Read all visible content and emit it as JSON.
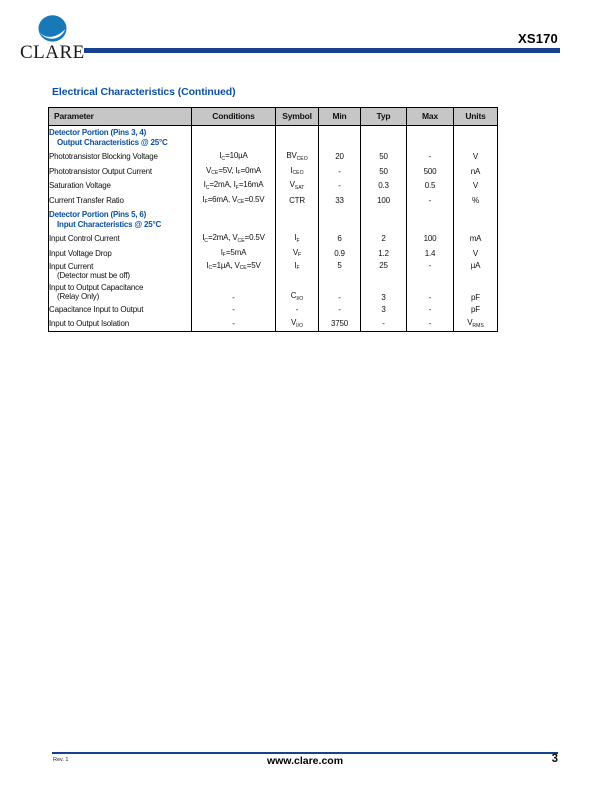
{
  "header": {
    "brand": "CLARE",
    "part_number": "XS170"
  },
  "section_title": "Electrical Characteristics (Continued)",
  "table": {
    "columns": [
      "Parameter",
      "Conditions",
      "Symbol",
      "Min",
      "Typ",
      "Max",
      "Units"
    ],
    "rows": [
      {
        "type": "section",
        "param": [
          "Detector Portion (Pins 3, 4)",
          "Output Characteristics @ 25°C"
        ]
      },
      {
        "type": "data",
        "param": [
          "Phototransistor Blocking Voltage"
        ],
        "conditions": "I~C~=10µA",
        "symbol": "BV~CEO~",
        "min": "20",
        "typ": "50",
        "max": "-",
        "units": "V"
      },
      {
        "type": "data",
        "param": [
          "Phototransistor Output Current"
        ],
        "conditions": "V~CE~=5V, I~F~=0mA",
        "symbol": "I~CEO~",
        "min": "-",
        "typ": "50",
        "max": "500",
        "units": "nA"
      },
      {
        "type": "data",
        "param": [
          "Saturation Voltage"
        ],
        "conditions": "I~C~=2mA, I~F~=16mA",
        "symbol": "V~SAT~",
        "min": "-",
        "typ": "0.3",
        "max": "0.5",
        "units": "V"
      },
      {
        "type": "data",
        "param": [
          "Current Transfer Ratio"
        ],
        "conditions": "I~F~=6mA, V~CE~=0.5V",
        "symbol": "CTR",
        "min": "33",
        "typ": "100",
        "max": "-",
        "units": "%"
      },
      {
        "type": "section",
        "param": [
          "Detector Portion (Pins 5, 6)",
          "Input Characteristics @ 25°C"
        ]
      },
      {
        "type": "data",
        "param": [
          "Input Control Current"
        ],
        "conditions": "I~C~=2mA, V~CE~=0.5V",
        "symbol": "I~F~",
        "min": "6",
        "typ": "2",
        "max": "100",
        "units": "mA"
      },
      {
        "type": "data",
        "param": [
          "Input Voltage Drop"
        ],
        "conditions": "I~F~=5mA",
        "symbol": "V~F~",
        "min": "0.9",
        "typ": "1.2",
        "max": "1.4",
        "units": "V"
      },
      {
        "type": "data",
        "valign": "top",
        "param": [
          "Input Current",
          "(Detector must be off)"
        ],
        "conditions": "I~C~=1µA, V~CE~=5V",
        "symbol": "I~F~",
        "min": "5",
        "typ": "25",
        "max": "-",
        "units": "µA"
      },
      {
        "type": "data",
        "valign": "bottom",
        "param": [
          "Input to Output Capacitance",
          "(Relay Only)"
        ],
        "conditions": "-",
        "symbol": "C~I/O~",
        "min": "-",
        "typ": "3",
        "max": "-",
        "units": "pF"
      },
      {
        "type": "data",
        "param": [
          "Capacitance Input to Output"
        ],
        "conditions": "-",
        "symbol": "-",
        "min": "-",
        "typ": "3",
        "max": "-",
        "units": "pF"
      },
      {
        "type": "data",
        "param": [
          "Input to Output Isolation"
        ],
        "conditions": "-",
        "symbol": "V~I/O~",
        "min": "3750",
        "typ": "-",
        "max": "-",
        "units": "V~RMS~"
      }
    ]
  },
  "footer": {
    "revision": "Rev. 1",
    "website": "www.clare.com",
    "page_number": "3"
  },
  "colors": {
    "accent_blue": "#0b51a2",
    "rule_navy": "#16418f",
    "logo_blue": "#1779b8",
    "table_header_bg": "#c6c6c6"
  }
}
